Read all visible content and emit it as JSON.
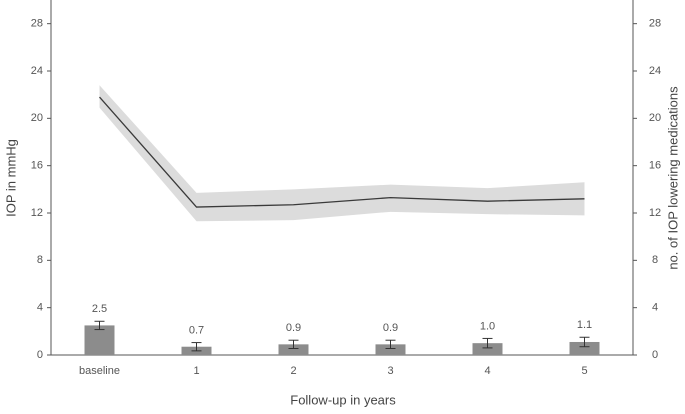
{
  "chart_data": {
    "type": "combo",
    "y_label": "IOP in mmHg",
    "y2_label": "no. of IOP lowering medications",
    "x_label": "Follow-up in years",
    "categories": [
      "baseline",
      "1",
      "2",
      "3",
      "4",
      "5"
    ],
    "ylim": [
      0,
      30
    ],
    "yticks": [
      0,
      4,
      8,
      12,
      16,
      20,
      24,
      28
    ],
    "y2lim": [
      0,
      30
    ],
    "y2ticks": [
      0,
      4,
      8,
      12,
      16,
      20,
      24,
      28
    ],
    "grid": false,
    "series": [
      {
        "type": "line",
        "color": "#3a3a3a",
        "band_color": "#dcdcdc",
        "values": [
          21.8,
          12.5,
          12.7,
          13.3,
          13.0,
          13.2
        ],
        "upper": [
          22.8,
          13.7,
          14.0,
          14.4,
          14.1,
          14.6
        ],
        "lower": [
          20.9,
          11.3,
          11.4,
          12.1,
          11.9,
          11.8
        ]
      },
      {
        "type": "bar",
        "axis": "y2",
        "color": "#8c8c8c",
        "values": [
          2.5,
          0.7,
          0.9,
          0.9,
          1.0,
          1.1
        ],
        "value_labels": [
          "2.5",
          "0.7",
          "0.9",
          "0.9",
          "1.0",
          "1.1"
        ],
        "errors": [
          0.35,
          0.35,
          0.35,
          0.35,
          0.4,
          0.4
        ]
      }
    ]
  }
}
